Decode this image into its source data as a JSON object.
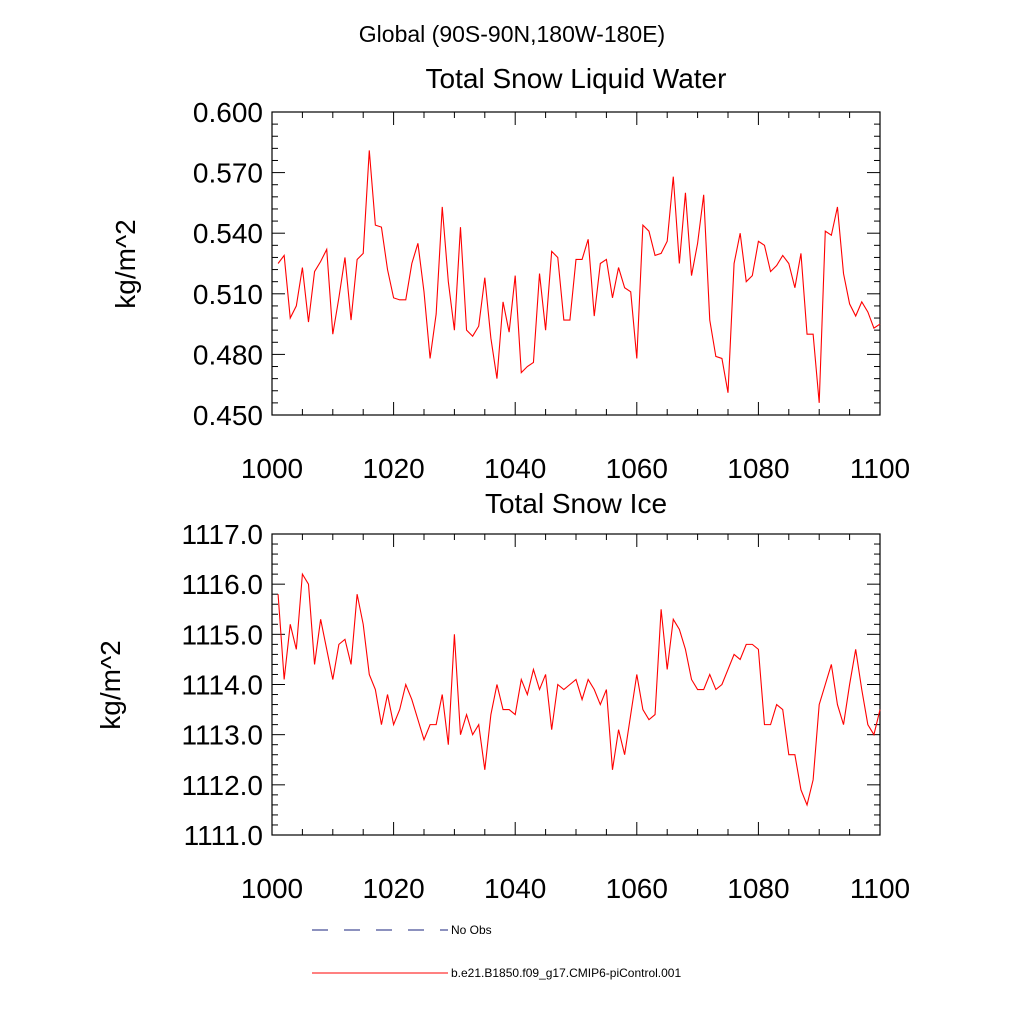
{
  "figure": {
    "suptitle": "Global (90S-90N,180W-180E)",
    "legend": {
      "entries": [
        {
          "label": "No Obs",
          "color": "#1a237e",
          "style": "dashed"
        },
        {
          "label": "b.e21.B1850.f09_g17.CMIP6-piControl.001",
          "color": "#ff0000",
          "style": "solid"
        }
      ]
    }
  },
  "chart_data": [
    {
      "type": "line",
      "title": "Total Snow Liquid Water",
      "xlabel": "",
      "ylabel": "kg/m^2",
      "xlim": [
        1000,
        1100
      ],
      "ylim": [
        0.45,
        0.6
      ],
      "xticks": [
        1000,
        1020,
        1040,
        1060,
        1080,
        1100
      ],
      "xtick_labels": [
        "1000",
        "1020",
        "1040",
        "1060",
        "1080",
        "1100"
      ],
      "yticks": [
        0.45,
        0.48,
        0.51,
        0.54,
        0.57,
        0.6
      ],
      "ytick_labels": [
        "0.450",
        "0.480",
        "0.510",
        "0.540",
        "0.570",
        "0.600"
      ],
      "grid": false,
      "series": [
        {
          "name": "b.e21.B1850.f09_g17.CMIP6-piControl.001",
          "color": "#ff0000",
          "x": [
            1001,
            1002,
            1003,
            1004,
            1005,
            1006,
            1007,
            1008,
            1009,
            1010,
            1011,
            1012,
            1013,
            1014,
            1015,
            1016,
            1017,
            1018,
            1019,
            1020,
            1021,
            1022,
            1023,
            1024,
            1025,
            1026,
            1027,
            1028,
            1029,
            1030,
            1031,
            1032,
            1033,
            1034,
            1035,
            1036,
            1037,
            1038,
            1039,
            1040,
            1041,
            1042,
            1043,
            1044,
            1045,
            1046,
            1047,
            1048,
            1049,
            1050,
            1051,
            1052,
            1053,
            1054,
            1055,
            1056,
            1057,
            1058,
            1059,
            1060,
            1061,
            1062,
            1063,
            1064,
            1065,
            1066,
            1067,
            1068,
            1069,
            1070,
            1071,
            1072,
            1073,
            1074,
            1075,
            1076,
            1077,
            1078,
            1079,
            1080,
            1081,
            1082,
            1083,
            1084,
            1085,
            1086,
            1087,
            1088,
            1089,
            1090,
            1091,
            1092,
            1093,
            1094,
            1095,
            1096,
            1097,
            1098,
            1099,
            1100
          ],
          "values": [
            0.525,
            0.529,
            0.498,
            0.504,
            0.523,
            0.496,
            0.521,
            0.526,
            0.532,
            0.49,
            0.508,
            0.528,
            0.497,
            0.527,
            0.53,
            0.581,
            0.544,
            0.543,
            0.522,
            0.508,
            0.507,
            0.507,
            0.525,
            0.535,
            0.511,
            0.478,
            0.5,
            0.553,
            0.516,
            0.492,
            0.543,
            0.492,
            0.489,
            0.494,
            0.518,
            0.488,
            0.468,
            0.506,
            0.491,
            0.519,
            0.471,
            0.474,
            0.476,
            0.52,
            0.492,
            0.531,
            0.528,
            0.497,
            0.497,
            0.527,
            0.527,
            0.537,
            0.499,
            0.525,
            0.527,
            0.508,
            0.523,
            0.513,
            0.511,
            0.478,
            0.544,
            0.541,
            0.529,
            0.53,
            0.536,
            0.568,
            0.525,
            0.56,
            0.519,
            0.535,
            0.559,
            0.497,
            0.479,
            0.478,
            0.461,
            0.525,
            0.54,
            0.516,
            0.519,
            0.536,
            0.534,
            0.521,
            0.524,
            0.529,
            0.525,
            0.513,
            0.53,
            0.49,
            0.49,
            0.456,
            0.541,
            0.539,
            0.553,
            0.52,
            0.505,
            0.499,
            0.506,
            0.501,
            0.493,
            0.495
          ]
        }
      ]
    },
    {
      "type": "line",
      "title": "Total Snow Ice",
      "xlabel": "",
      "ylabel": "kg/m^2",
      "xlim": [
        1000,
        1100
      ],
      "ylim": [
        1111.0,
        1117.0
      ],
      "xticks": [
        1000,
        1020,
        1040,
        1060,
        1080,
        1100
      ],
      "xtick_labels": [
        "1000",
        "1020",
        "1040",
        "1060",
        "1080",
        "1100"
      ],
      "yticks": [
        1111.0,
        1112.0,
        1113.0,
        1114.0,
        1115.0,
        1116.0,
        1117.0
      ],
      "ytick_labels": [
        "1111.0",
        "1112.0",
        "1113.0",
        "1114.0",
        "1115.0",
        "1116.0",
        "1117.0"
      ],
      "grid": false,
      "series": [
        {
          "name": "b.e21.B1850.f09_g17.CMIP6-piControl.001",
          "color": "#ff0000",
          "x": [
            1001,
            1002,
            1003,
            1004,
            1005,
            1006,
            1007,
            1008,
            1009,
            1010,
            1011,
            1012,
            1013,
            1014,
            1015,
            1016,
            1017,
            1018,
            1019,
            1020,
            1021,
            1022,
            1023,
            1024,
            1025,
            1026,
            1027,
            1028,
            1029,
            1030,
            1031,
            1032,
            1033,
            1034,
            1035,
            1036,
            1037,
            1038,
            1039,
            1040,
            1041,
            1042,
            1043,
            1044,
            1045,
            1046,
            1047,
            1048,
            1049,
            1050,
            1051,
            1052,
            1053,
            1054,
            1055,
            1056,
            1057,
            1058,
            1059,
            1060,
            1061,
            1062,
            1063,
            1064,
            1065,
            1066,
            1067,
            1068,
            1069,
            1070,
            1071,
            1072,
            1073,
            1074,
            1075,
            1076,
            1077,
            1078,
            1079,
            1080,
            1081,
            1082,
            1083,
            1084,
            1085,
            1086,
            1087,
            1088,
            1089,
            1090,
            1091,
            1092,
            1093,
            1094,
            1095,
            1096,
            1097,
            1098,
            1099,
            1100
          ],
          "values": [
            1115.8,
            1114.1,
            1115.2,
            1114.7,
            1116.2,
            1116.0,
            1114.4,
            1115.3,
            1114.7,
            1114.1,
            1114.8,
            1114.9,
            1114.4,
            1115.8,
            1115.2,
            1114.2,
            1113.9,
            1113.2,
            1113.8,
            1113.2,
            1113.5,
            1114.0,
            1113.7,
            1113.3,
            1112.9,
            1113.2,
            1113.2,
            1113.8,
            1112.8,
            1115.0,
            1113.0,
            1113.4,
            1113.0,
            1113.2,
            1112.3,
            1113.4,
            1114.0,
            1113.5,
            1113.5,
            1113.4,
            1114.1,
            1113.8,
            1114.3,
            1113.9,
            1114.2,
            1113.1,
            1114.0,
            1113.9,
            1114.0,
            1114.1,
            1113.7,
            1114.1,
            1113.9,
            1113.6,
            1113.9,
            1112.3,
            1113.1,
            1112.6,
            1113.4,
            1114.2,
            1113.5,
            1113.3,
            1113.4,
            1115.5,
            1114.3,
            1115.3,
            1115.1,
            1114.7,
            1114.1,
            1113.9,
            1113.9,
            1114.2,
            1113.9,
            1114.0,
            1114.3,
            1114.6,
            1114.5,
            1114.8,
            1114.8,
            1114.7,
            1113.2,
            1113.2,
            1113.6,
            1113.5,
            1112.6,
            1112.6,
            1111.9,
            1111.6,
            1112.1,
            1113.6,
            1114.0,
            1114.4,
            1113.6,
            1113.2,
            1114.0,
            1114.7,
            1113.9,
            1113.2,
            1113.0,
            1113.5
          ]
        }
      ]
    }
  ]
}
